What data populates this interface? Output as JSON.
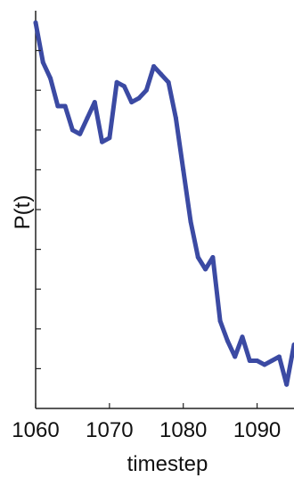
{
  "chart_data": {
    "type": "line",
    "title": "",
    "xlabel": "timestep",
    "ylabel": "P(t)",
    "xlim": [
      1060,
      1095
    ],
    "ylim": [
      0,
      1
    ],
    "x_ticks": [
      1060,
      1070,
      1080,
      1090
    ],
    "y_ticks": [
      0.1,
      0.2,
      0.3,
      0.4,
      0.5,
      0.6,
      0.7,
      0.8,
      0.9
    ],
    "y_tick_labels_shown": false,
    "grid": false,
    "legend": "none",
    "series": [
      {
        "color": "#3b4aa3",
        "x": [
          1060,
          1061,
          1062,
          1063,
          1064,
          1065,
          1066,
          1067,
          1068,
          1069,
          1070,
          1071,
          1072,
          1073,
          1074,
          1075,
          1076,
          1077,
          1078,
          1079,
          1080,
          1081,
          1082,
          1083,
          1084,
          1085,
          1086,
          1087,
          1088,
          1089,
          1090,
          1091,
          1092,
          1093,
          1094,
          1095
        ],
        "values": [
          0.97,
          0.87,
          0.83,
          0.76,
          0.76,
          0.7,
          0.69,
          0.73,
          0.77,
          0.67,
          0.68,
          0.82,
          0.81,
          0.77,
          0.78,
          0.8,
          0.86,
          0.84,
          0.82,
          0.73,
          0.6,
          0.47,
          0.38,
          0.35,
          0.38,
          0.22,
          0.17,
          0.13,
          0.18,
          0.12,
          0.12,
          0.11,
          0.12,
          0.13,
          0.06,
          0.16
        ]
      }
    ]
  }
}
